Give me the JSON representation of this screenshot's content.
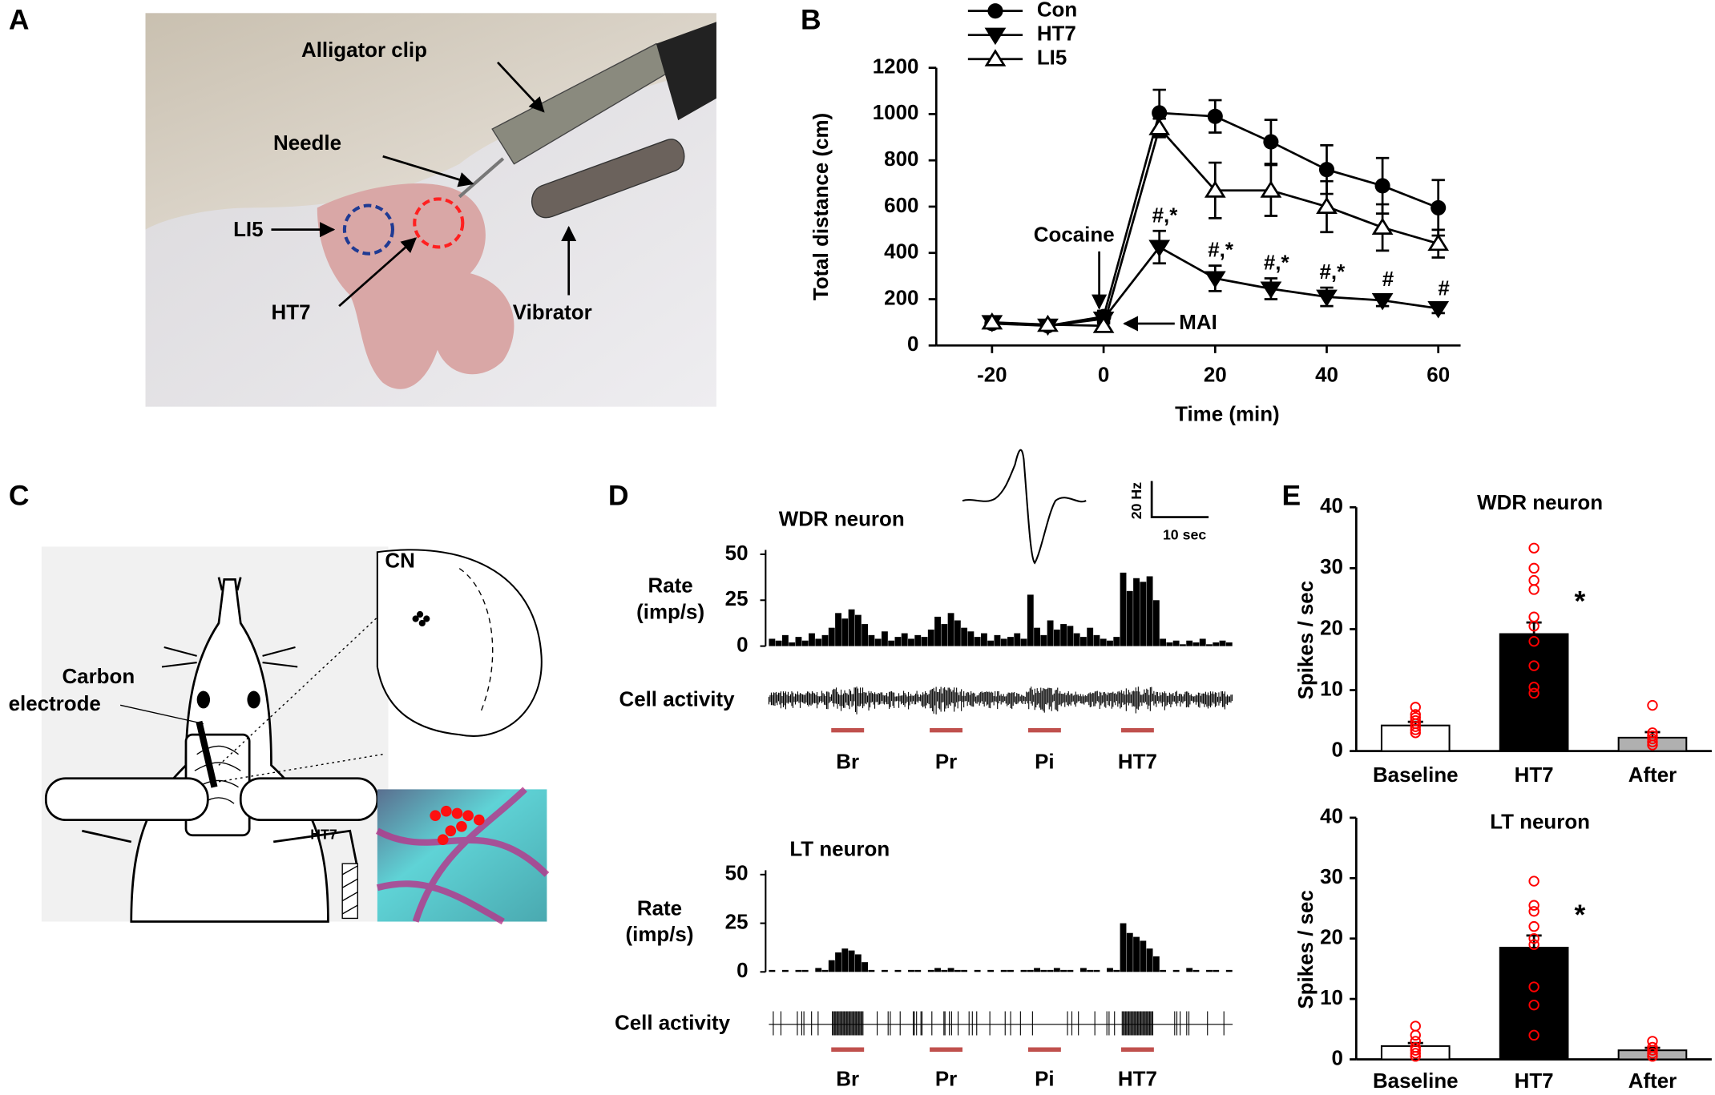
{
  "panel_labels": [
    "A",
    "B",
    "C",
    "D",
    "E"
  ],
  "photo_a": {
    "labels": [
      "Alligator clip",
      "Needle",
      "LI5",
      "HT7",
      "Vibrator"
    ]
  },
  "diagram_c": {
    "labels": [
      "CN",
      "Carbon",
      "electrode",
      "HT7"
    ]
  },
  "chart_data": [
    {
      "type": "line",
      "xlabel": "Time (min)",
      "ylabel": "Total distance (cm)",
      "x": [
        -20,
        -10,
        0,
        10,
        20,
        30,
        40,
        50,
        60
      ],
      "xlim": [
        -30,
        64
      ],
      "xticks": [
        -20,
        0,
        20,
        40,
        60
      ],
      "ylim": [
        0,
        1200
      ],
      "yticks": [
        0,
        200,
        400,
        600,
        800,
        1000,
        1200
      ],
      "grid": false,
      "series": [
        {
          "name": "Con",
          "color": "#000000",
          "marker": "circle",
          "values": [
            95,
            85,
            125,
            1005,
            990,
            880,
            760,
            690,
            595
          ],
          "errors": [
            20,
            15,
            25,
            100,
            70,
            95,
            105,
            120,
            120
          ]
        },
        {
          "name": "HT7",
          "color": "#000000",
          "marker": "triangle-down",
          "values": [
            100,
            85,
            115,
            425,
            290,
            245,
            210,
            195,
            160
          ],
          "errors": [
            15,
            15,
            20,
            70,
            55,
            45,
            40,
            25,
            20
          ],
          "point_labels": [
            null,
            null,
            null,
            "#,*",
            "#,*",
            "#,*",
            "#,*",
            "#",
            "#"
          ]
        },
        {
          "name": "LI5",
          "color": "#000000",
          "marker": "triangle-up",
          "values": [
            100,
            90,
            85,
            940,
            670,
            670,
            600,
            510,
            440
          ],
          "errors": [
            20,
            15,
            20,
            40,
            120,
            110,
            110,
            100,
            60
          ]
        }
      ],
      "annotations": [
        "Cocaine",
        "MAI"
      ]
    },
    {
      "type": "rate",
      "title": "WDR neuron",
      "ylabel": [
        "Rate",
        "(imp/s)"
      ],
      "ylim": [
        0,
        50
      ],
      "yticks": [
        0,
        25,
        50
      ],
      "color": "#000000",
      "values": [
        4,
        3,
        6,
        2,
        5,
        3,
        7,
        4,
        6,
        10,
        18,
        15,
        20,
        17,
        12,
        6,
        4,
        8,
        3,
        5,
        7,
        4,
        6,
        5,
        9,
        16,
        12,
        18,
        14,
        10,
        8,
        5,
        7,
        3,
        6,
        4,
        5,
        7,
        4,
        28,
        10,
        6,
        14,
        9,
        12,
        11,
        7,
        5,
        10,
        6,
        4,
        3,
        5,
        40,
        30,
        37,
        35,
        38,
        25,
        4,
        2,
        3,
        1,
        3,
        2,
        4,
        1,
        2,
        3,
        2
      ],
      "trace_label": "Cell activity",
      "stimuli": [
        "Br",
        "Pr",
        "Pi",
        "HT7"
      ],
      "stimulus_color": "#c0504d",
      "scale_bar": [
        "20 Hz",
        "10 sec"
      ]
    },
    {
      "type": "rate",
      "title": "LT neuron",
      "ylabel": [
        "Rate",
        "(imp/s)"
      ],
      "ylim": [
        0,
        50
      ],
      "yticks": [
        0,
        25,
        50
      ],
      "color": "#000000",
      "values": [
        1,
        0,
        1,
        0,
        1,
        1,
        0,
        2,
        1,
        6,
        10,
        12,
        11,
        9,
        5,
        1,
        0,
        1,
        0,
        1,
        0,
        1,
        1,
        0,
        1,
        2,
        1,
        2,
        1,
        1,
        0,
        1,
        0,
        1,
        0,
        1,
        1,
        0,
        1,
        1,
        2,
        1,
        1,
        2,
        1,
        1,
        0,
        2,
        1,
        1,
        0,
        2,
        1,
        25,
        20,
        18,
        16,
        12,
        8,
        1,
        0,
        1,
        0,
        2,
        1,
        0,
        1,
        1,
        0,
        1
      ],
      "trace_label": "Cell activity",
      "stimuli": [
        "Br",
        "Pr",
        "Pi",
        "HT7"
      ],
      "stimulus_color": "#c0504d"
    },
    {
      "type": "bar",
      "title": "WDR neuron",
      "ylabel": "Spikes / sec",
      "categories": [
        "Baseline",
        "HT7",
        "After"
      ],
      "values": [
        4.2,
        19.2,
        2.2
      ],
      "errors": [
        0.6,
        1.9,
        0.9
      ],
      "colors": [
        "#ffffff",
        "#000000",
        "#b0b0b0"
      ],
      "points": [
        [
          3,
          3.5,
          4,
          4.5,
          5,
          5.5,
          6,
          7.2
        ],
        [
          33.3,
          30,
          28,
          26.5,
          22,
          20.5,
          18,
          14,
          10.5,
          9.5
        ],
        [
          1,
          1.5,
          2,
          2.5,
          3,
          7.5
        ]
      ],
      "point_color": "#ff0000",
      "bar_labels": [
        null,
        "*",
        null
      ],
      "ylim": [
        0,
        40
      ],
      "yticks": [
        0,
        10,
        20,
        30,
        40
      ]
    },
    {
      "type": "bar",
      "title": "LT neuron",
      "ylabel": "Spikes / sec",
      "categories": [
        "Baseline",
        "HT7",
        "After"
      ],
      "values": [
        2.2,
        18.5,
        1.5
      ],
      "errors": [
        0.5,
        2,
        0.4
      ],
      "colors": [
        "#ffffff",
        "#000000",
        "#b0b0b0"
      ],
      "points": [
        [
          0.5,
          1,
          1.5,
          2,
          3,
          4,
          5.5
        ],
        [
          29.5,
          25.5,
          24.5,
          22,
          20,
          19,
          12,
          9,
          4
        ],
        [
          0.5,
          1,
          1.5,
          2,
          3
        ]
      ],
      "point_color": "#ff0000",
      "bar_labels": [
        null,
        "*",
        null
      ],
      "ylim": [
        0,
        40
      ],
      "yticks": [
        0,
        10,
        20,
        30,
        40
      ]
    }
  ]
}
